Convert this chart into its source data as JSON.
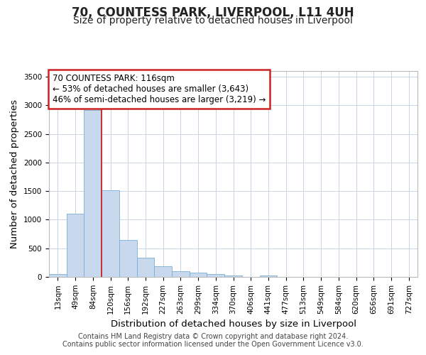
{
  "title": "70, COUNTESS PARK, LIVERPOOL, L11 4UH",
  "subtitle": "Size of property relative to detached houses in Liverpool",
  "xlabel": "Distribution of detached houses by size in Liverpool",
  "ylabel": "Number of detached properties",
  "categories": [
    "13sqm",
    "49sqm",
    "84sqm",
    "120sqm",
    "156sqm",
    "192sqm",
    "227sqm",
    "263sqm",
    "299sqm",
    "334sqm",
    "370sqm",
    "406sqm",
    "441sqm",
    "477sqm",
    "513sqm",
    "549sqm",
    "584sqm",
    "620sqm",
    "656sqm",
    "691sqm",
    "727sqm"
  ],
  "values": [
    55,
    1110,
    2920,
    1510,
    640,
    335,
    190,
    100,
    75,
    55,
    30,
    0,
    30,
    0,
    0,
    0,
    0,
    0,
    0,
    0,
    0
  ],
  "bar_color": "#c8d9ee",
  "bar_edge_color": "#7aadd4",
  "grid_color": "#c8d4e8",
  "bg_color": "#ffffff",
  "fig_bg_color": "#ffffff",
  "vline_color": "#cc2222",
  "vline_x": 3.0,
  "annotation_text_line1": "70 COUNTESS PARK: 116sqm",
  "annotation_text_line2": "← 53% of detached houses are smaller (3,643)",
  "annotation_text_line3": "46% of semi-detached houses are larger (3,219) →",
  "annotation_box_color": "#cc2222",
  "ylim": [
    0,
    3600
  ],
  "yticks": [
    0,
    500,
    1000,
    1500,
    2000,
    2500,
    3000,
    3500
  ],
  "footer_line1": "Contains HM Land Registry data © Crown copyright and database right 2024.",
  "footer_line2": "Contains public sector information licensed under the Open Government Licence v3.0.",
  "title_fontsize": 12,
  "subtitle_fontsize": 10,
  "axis_label_fontsize": 9.5,
  "tick_fontsize": 7.5,
  "footer_fontsize": 7,
  "annotation_fontsize": 8.5
}
